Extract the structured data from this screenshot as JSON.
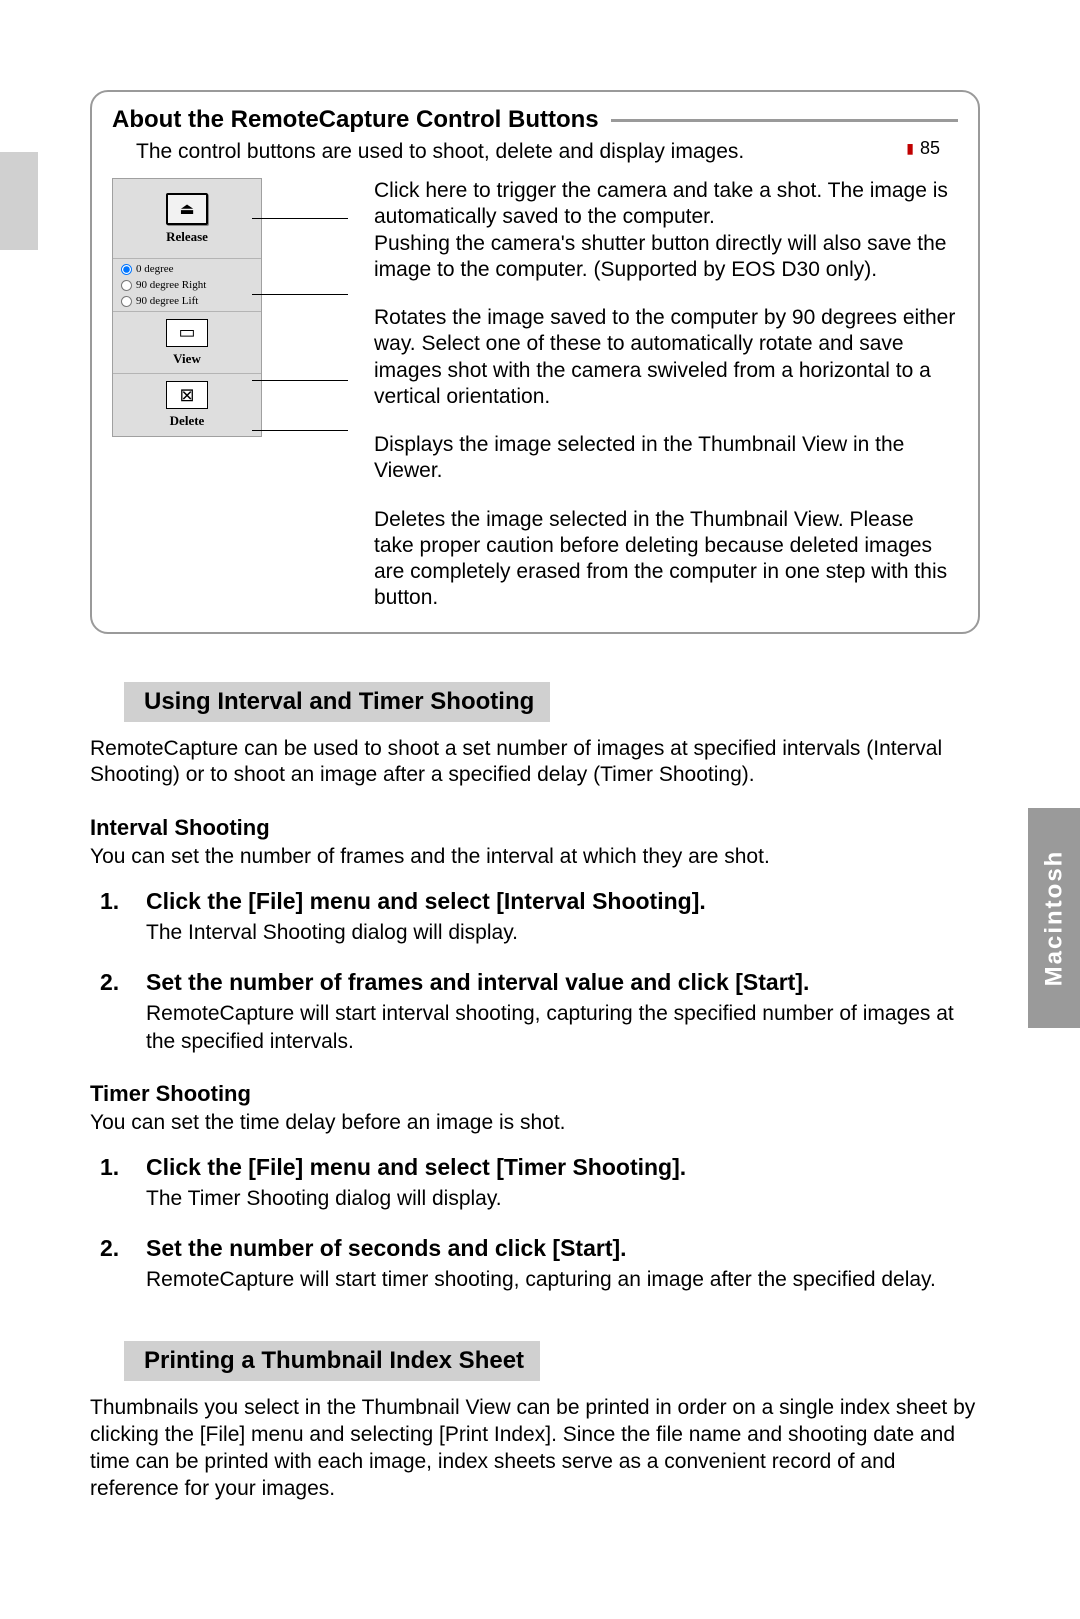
{
  "page_number": "85",
  "side_tab": "Macintosh",
  "box": {
    "title": "About the RemoteCapture Control Buttons",
    "intro": "The control buttons are used to shoot, delete and display images.",
    "panel": {
      "release": "Release",
      "rot0": "0 degree",
      "rot_right": "90 degree Right",
      "rot_left": "90 degree Lift",
      "view": "View",
      "delete": "Delete"
    },
    "desc": {
      "release": "Click here to trigger the camera and take a shot. The image is automatically saved to the computer.\nPushing the camera's shutter button directly will also save the image to the computer. (Supported by EOS D30 only).",
      "rotate": "Rotates the image saved to the computer by 90 degrees either way. Select one of these to automatically rotate and save images shot with the camera swiveled from a horizontal to a vertical orientation.",
      "view": "Displays the image selected in the Thumbnail View in the Viewer.",
      "delete": "Deletes the image selected in the Thumbnail View. Please take proper caution before deleting because deleted images are completely erased from the computer in one step with this button."
    }
  },
  "s1": {
    "head": "Using Interval and Timer Shooting",
    "p": "RemoteCapture can be used to shoot a set number of images at specified intervals (Interval Shooting) or to shoot an image after a specified delay (Timer Shooting).",
    "interval": {
      "h": "Interval Shooting",
      "p": "You can set the number of frames and the interval at which they are shot.",
      "steps": [
        {
          "t": "Click the [File] menu and select [Interval Shooting].",
          "b": "The Interval Shooting dialog will display."
        },
        {
          "t": "Set the number of frames and interval value and click [Start].",
          "b": "RemoteCapture will start interval shooting, capturing the specified number of images at the specified intervals."
        }
      ]
    },
    "timer": {
      "h": "Timer Shooting",
      "p": "You can set the time delay before an image is shot.",
      "steps": [
        {
          "t": "Click the [File] menu and select [Timer Shooting].",
          "b": "The Timer Shooting dialog will display."
        },
        {
          "t": "Set the number of seconds and click [Start].",
          "b": "RemoteCapture will start timer shooting, capturing an image after the specified delay."
        }
      ]
    }
  },
  "s2": {
    "head": "Printing a Thumbnail Index Sheet",
    "p": "Thumbnails you select in the Thumbnail View can be printed in order on a single index sheet by clicking the [File] menu and selecting [Print Index]. Since the file name and shooting date and time can be printed with each image, index sheets serve as a convenient record of and reference for your images."
  }
}
